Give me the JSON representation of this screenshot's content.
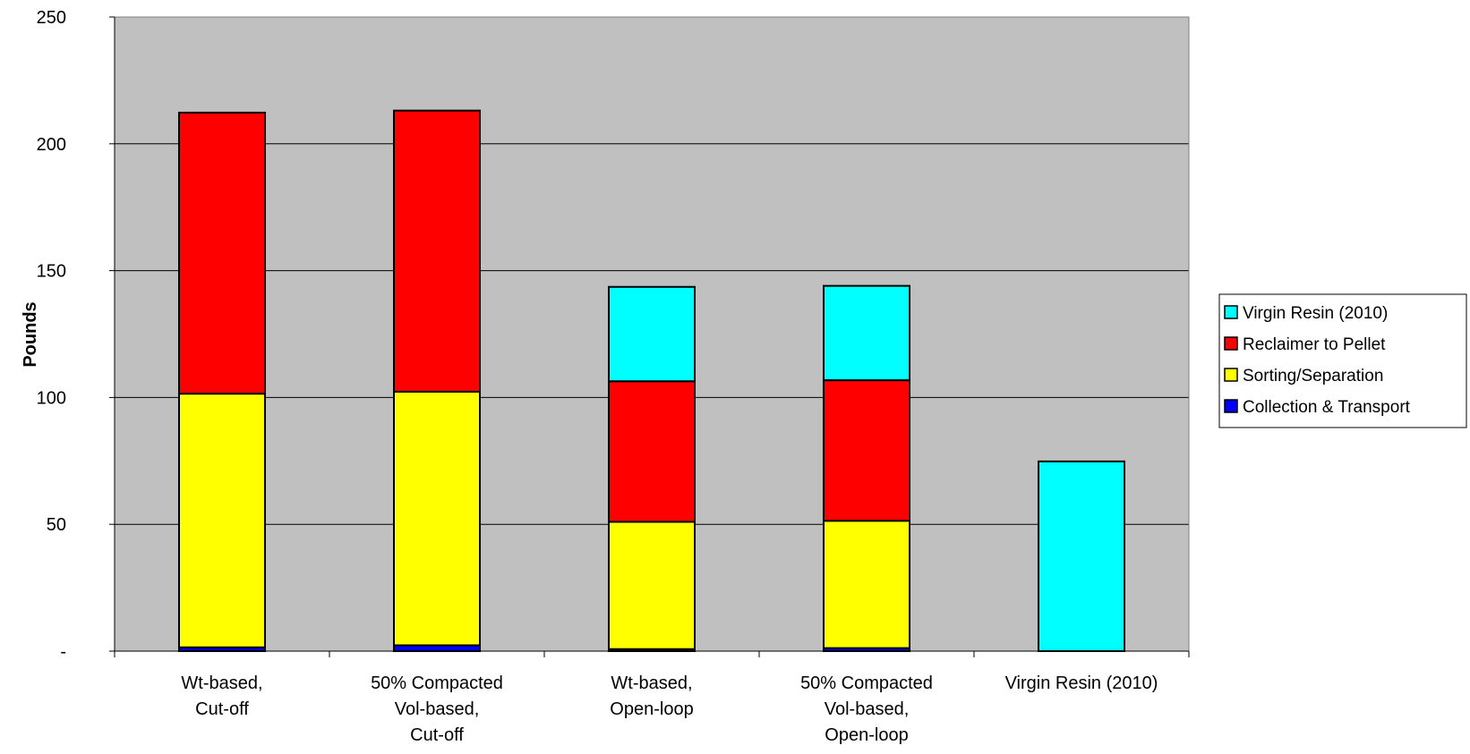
{
  "chart_data": {
    "type": "bar",
    "stacked": true,
    "title": "",
    "xlabel": "",
    "ylabel": "Pounds",
    "ylim": [
      0,
      250
    ],
    "yticks": [
      0,
      50,
      100,
      150,
      200,
      250
    ],
    "ytick_labels": [
      "-",
      "50",
      "100",
      "150",
      "200",
      "250"
    ],
    "grid": true,
    "legend_position": "right",
    "categories": [
      [
        "Wt-based,",
        "Cut-off"
      ],
      [
        "50% Compacted",
        "Vol-based,",
        "Cut-off"
      ],
      [
        "Wt-based,",
        "Open-loop"
      ],
      [
        "50% Compacted",
        "Vol-based,",
        "Open-loop"
      ],
      [
        "Virgin Resin (2010)"
      ]
    ],
    "series": [
      {
        "name": "Collection & Transport",
        "color": "#0000ff",
        "values": [
          1.5,
          2.3,
          0.8,
          1.2,
          0
        ]
      },
      {
        "name": "Sorting/Separation",
        "color": "#ffff00",
        "values": [
          100.0,
          100.0,
          50.2,
          50.2,
          0
        ]
      },
      {
        "name": "Reclaimer to Pellet",
        "color": "#ff0000",
        "values": [
          110.8,
          110.8,
          55.4,
          55.4,
          0
        ]
      },
      {
        "name": "Virgin Resin (2010)",
        "color": "#00ffff",
        "values": [
          0,
          0,
          37.2,
          37.2,
          74.8
        ]
      }
    ],
    "legend_order": [
      "Virgin Resin (2010)",
      "Reclaimer to Pellet",
      "Sorting/Separation",
      "Collection & Transport"
    ],
    "plot_background": "#c0c0c0"
  }
}
